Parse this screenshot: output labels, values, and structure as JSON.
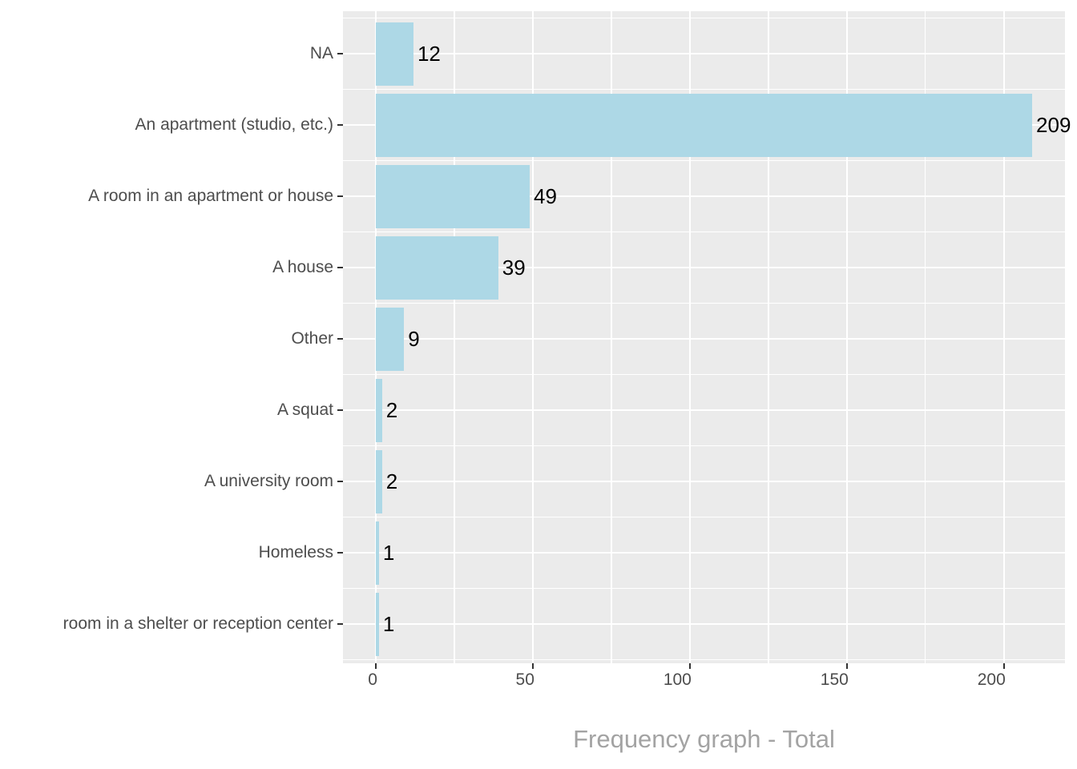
{
  "chart_data": {
    "type": "bar",
    "orientation": "horizontal",
    "title": "",
    "xlabel": "Frequency graph - Total",
    "ylabel": "",
    "categories": [
      "NA",
      "An apartment (studio, etc.)",
      "A room in an apartment or house",
      "A house",
      "Other",
      "A squat",
      "A university room",
      "Homeless",
      "room in a shelter or reception center"
    ],
    "values": [
      12,
      209,
      49,
      39,
      9,
      2,
      2,
      1,
      1
    ],
    "bar_labels": [
      "12",
      "209",
      "49",
      "39",
      "9",
      "2",
      "2",
      "1",
      "1"
    ],
    "x_ticks": [
      0,
      50,
      100,
      150,
      200
    ],
    "x_tick_labels": [
      "0",
      "50",
      "100",
      "150",
      "200"
    ],
    "x_minor_ticks": [
      25,
      75,
      125,
      175
    ],
    "xlim_expanded": [
      -10.45,
      219.45
    ],
    "grid": "major-and-minor-white",
    "legend": "none",
    "colors": {
      "bar": "#ADD8E6",
      "panel_background": "#EBEBEB",
      "gridline": "#FFFFFF",
      "axis_text": "#4D4D4D",
      "tick_mark": "#333333",
      "value_label": "#000000",
      "title_text": "#A3A3A3",
      "figure_background": "#FFFFFF"
    }
  }
}
